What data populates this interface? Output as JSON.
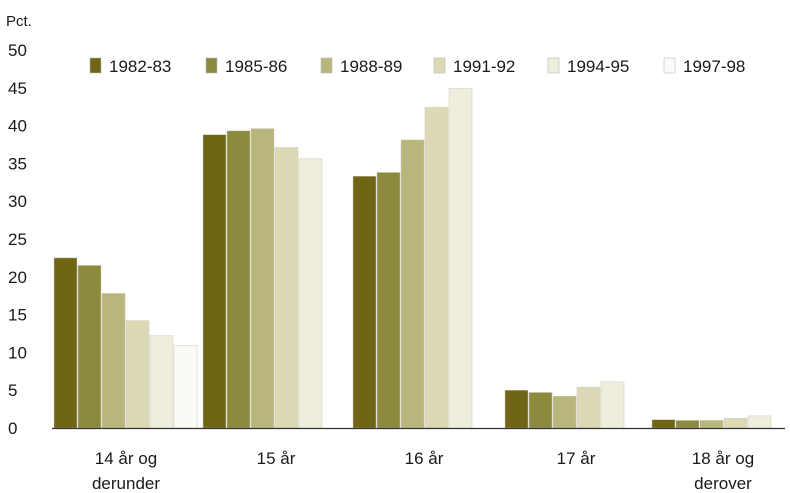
{
  "chart_data": {
    "type": "bar",
    "ylabel": "Pct.",
    "ylim": [
      0,
      50
    ],
    "yticks": [
      0,
      5,
      10,
      15,
      20,
      25,
      30,
      35,
      40,
      45,
      50
    ],
    "categories": [
      [
        "14 år og",
        "derunder"
      ],
      [
        "15 år"
      ],
      [
        "16 år"
      ],
      [
        "17 år"
      ],
      [
        "18 år og",
        "derover"
      ]
    ],
    "series": [
      {
        "name": "1982-83",
        "color": "#6f6515",
        "values": [
          22.5,
          38.8,
          33.3,
          5.0,
          1.1
        ]
      },
      {
        "name": "1985-86",
        "color": "#8c8a3c",
        "values": [
          21.5,
          39.3,
          33.8,
          4.7,
          1.0
        ]
      },
      {
        "name": "1988-89",
        "color": "#b9b67c",
        "values": [
          17.8,
          39.6,
          38.1,
          4.2,
          1.0
        ]
      },
      {
        "name": "1991-92",
        "color": "#dcdab5",
        "values": [
          14.2,
          37.1,
          42.4,
          5.4,
          1.3
        ]
      },
      {
        "name": "1994-95",
        "color": "#efeedd",
        "values": [
          12.2,
          35.6,
          44.9,
          6.1,
          1.6
        ]
      },
      {
        "name": "1997-98",
        "color": "#fbfbf6",
        "values": [
          10.9,
          0,
          0,
          0,
          0
        ]
      }
    ],
    "legend_position": "top",
    "grid": false
  }
}
